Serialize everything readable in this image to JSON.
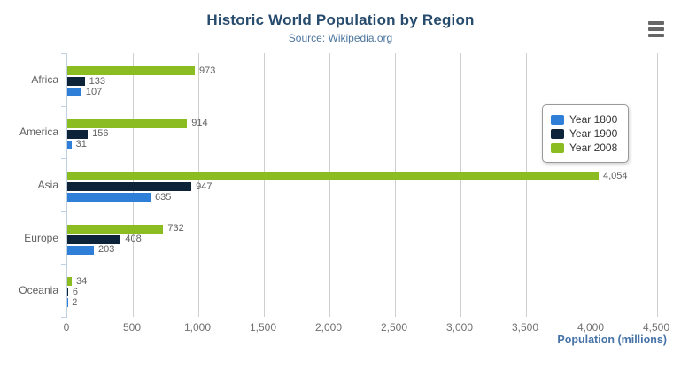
{
  "header": {
    "export_menu_icon": "hamburger-menu-icon"
  },
  "chart_data": {
    "type": "bar",
    "orientation": "horizontal",
    "title": "Historic World Population by Region",
    "subtitle": "Source: Wikipedia.org",
    "categories": [
      "Africa",
      "America",
      "Asia",
      "Europe",
      "Oceania"
    ],
    "series": [
      {
        "name": "Year 1800",
        "color": "#2f7ed8",
        "values": [
          107,
          31,
          635,
          203,
          2
        ]
      },
      {
        "name": "Year 1900",
        "color": "#0d233a",
        "values": [
          133,
          156,
          947,
          408,
          6
        ]
      },
      {
        "name": "Year 2008",
        "color": "#8bbc21",
        "values": [
          973,
          914,
          4054,
          732,
          34
        ]
      }
    ],
    "bar_order_top_to_bottom": [
      "Year 2008",
      "Year 1900",
      "Year 1800"
    ],
    "data_labels_shown": true,
    "xlabel": "Population (millions)",
    "xlim": [
      0,
      4500
    ],
    "x_ticks": [
      "0",
      "500",
      "1,000",
      "1,500",
      "2,000",
      "2,500",
      "3,000",
      "3,500",
      "4,000",
      "4,500"
    ],
    "grid": "vertical-only",
    "legend_position": "right-middle"
  },
  "colors": {
    "title": "#274b6d",
    "subtitle": "#4d759e",
    "axis_title": "#4572a7",
    "axis_line": "#c0d0e0",
    "gridline": "#cfcfcf",
    "label_gray": "#606060",
    "legend_border": "#999999",
    "menu_icon": "#666666"
  }
}
